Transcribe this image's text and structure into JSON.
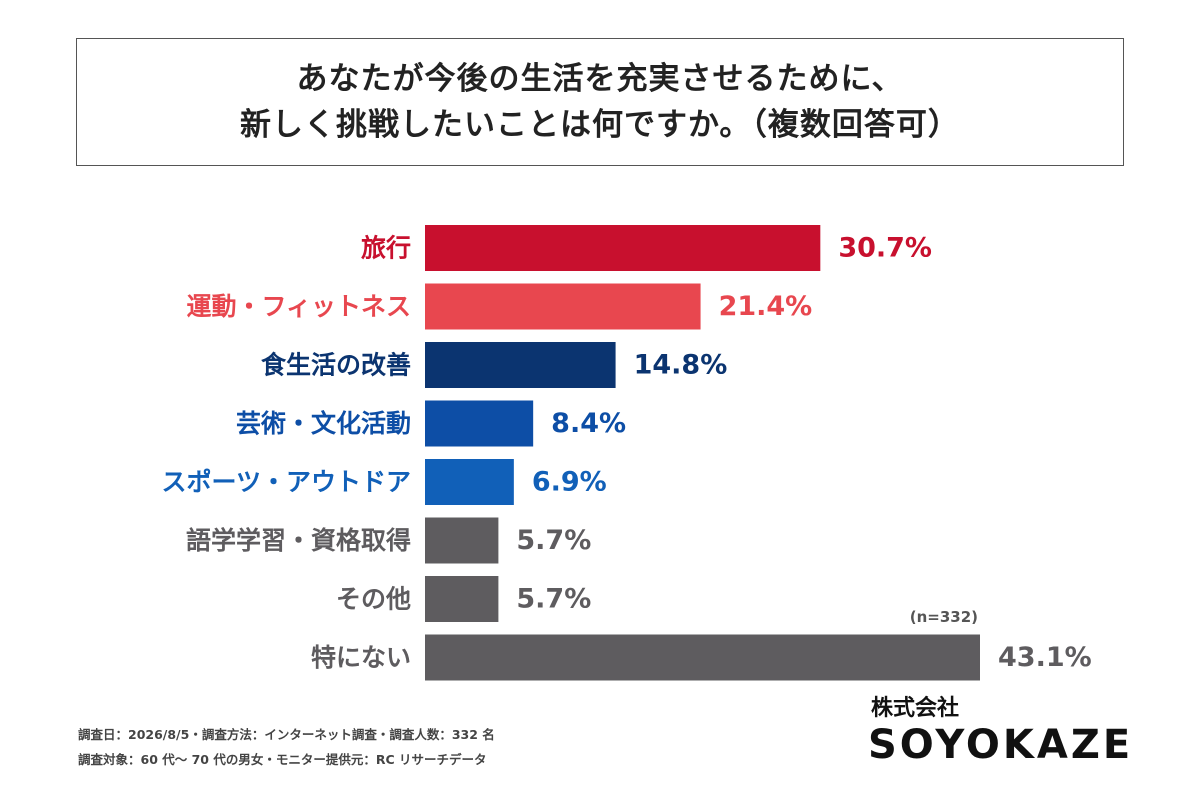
{
  "title": {
    "line1": "あなたが今後の生活を充実させるために、",
    "line2": "新しく挑戦したいことは何ですか。（複数回答可）"
  },
  "sample_note": "(n=332)",
  "footer": {
    "line1": "調査日：2026/8/5・調査方法：インターネット調査・調査人数：332 名",
    "line2": "調査対象：60 代〜 70 代の男女・モニター提供元：RC リサーチデータ"
  },
  "logo": {
    "company_jp": "株式会社",
    "company_en": "SOYOKAZE"
  },
  "chart_data": {
    "type": "bar",
    "orientation": "horizontal",
    "unit": "%",
    "categories": [
      "旅行",
      "運動・フィットネス",
      "食生活の改善",
      "芸術・文化活動",
      "スポーツ・アウトドア",
      "語学学習・資格取得",
      "その他",
      "特にない"
    ],
    "values": [
      30.7,
      21.4,
      14.8,
      8.4,
      6.9,
      5.7,
      5.7,
      43.1
    ],
    "value_labels": [
      "30.7%",
      "21.4%",
      "14.8%",
      "8.4%",
      "6.9%",
      "5.7%",
      "5.7%",
      "43.1%"
    ],
    "colors": [
      "#c8102e",
      "#e8474f",
      "#0b3470",
      "#0d4ea6",
      "#1160b8",
      "#5e5c5f",
      "#5e5c5f",
      "#5e5c5f"
    ],
    "xlim": [
      0,
      43.1
    ],
    "grid": false,
    "legend": "none"
  }
}
